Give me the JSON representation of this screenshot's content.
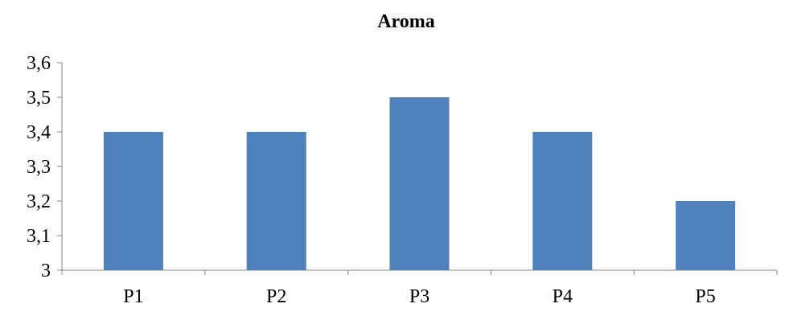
{
  "chart_data": {
    "type": "bar",
    "title": "Aroma",
    "categories": [
      "P1",
      "P2",
      "P3",
      "P4",
      "P5"
    ],
    "values": [
      3.4,
      3.4,
      3.5,
      3.4,
      3.2
    ],
    "ylim": [
      3.0,
      3.6
    ],
    "yticks": [
      "3",
      "3,1",
      "3,2",
      "3,3",
      "3,4",
      "3,5",
      "3,6"
    ],
    "grid": false,
    "legend": "none",
    "bar_color": "#4F81BD",
    "xlabel": "",
    "ylabel": ""
  }
}
